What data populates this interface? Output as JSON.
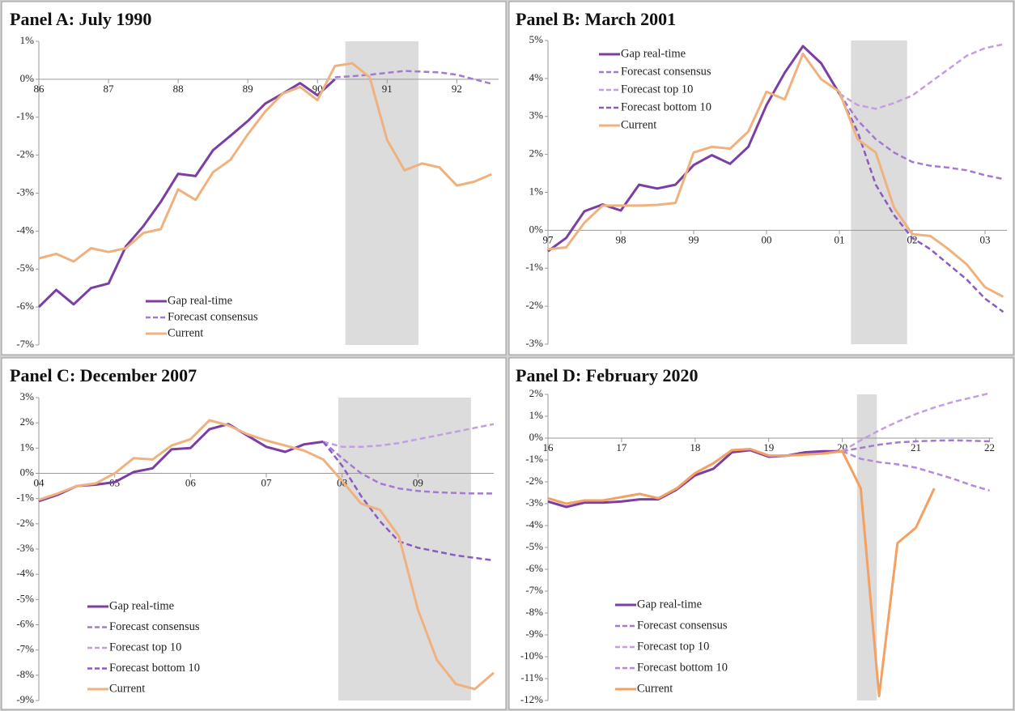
{
  "chart_data": [
    {
      "type": "line",
      "title": "Panel A: July 1990",
      "x": [
        1986,
        1986.25,
        1986.5,
        1986.75,
        1987,
        1987.25,
        1987.5,
        1987.75,
        1988,
        1988.25,
        1988.5,
        1988.75,
        1989,
        1989.25,
        1989.5,
        1989.75,
        1990,
        1990.25,
        1990.5,
        1990.75,
        1991,
        1991.25,
        1991.5,
        1991.75,
        1992,
        1992.25,
        1992.5
      ],
      "xlim": [
        1986,
        1992.6
      ],
      "xticks": [
        {
          "value": 1986,
          "label": "86"
        },
        {
          "value": 1987,
          "label": "87"
        },
        {
          "value": 1988,
          "label": "88"
        },
        {
          "value": 1989,
          "label": "89"
        },
        {
          "value": 1990,
          "label": "90"
        },
        {
          "value": 1991,
          "label": "91"
        },
        {
          "value": 1992,
          "label": "92"
        }
      ],
      "ylim": [
        -7,
        1
      ],
      "yticks": [
        {
          "value": 1,
          "label": "1%"
        },
        {
          "value": 0,
          "label": "0%"
        },
        {
          "value": -1,
          "label": "-1%"
        },
        {
          "value": -2,
          "label": "-2%"
        },
        {
          "value": -3,
          "label": "-3%"
        },
        {
          "value": -4,
          "label": "-4%"
        },
        {
          "value": -5,
          "label": "-5%"
        },
        {
          "value": -6,
          "label": "-6%"
        },
        {
          "value": -7,
          "label": "-7%"
        }
      ],
      "shade": [
        1990.4,
        1991.45
      ],
      "legend": "lower left",
      "series": [
        {
          "name": "Gap real-time",
          "color": "#7b3fa3",
          "style": "solid",
          "values": [
            -6.0,
            -5.55,
            -5.93,
            -5.5,
            -5.38,
            -4.4,
            -3.87,
            -3.23,
            -2.49,
            -2.55,
            -1.87,
            -1.49,
            -1.1,
            -0.64,
            -0.38,
            -0.1,
            -0.42,
            0.0,
            null,
            null,
            null,
            null,
            null,
            null,
            null,
            null,
            null
          ]
        },
        {
          "name": "Forecast consensus",
          "color": "#a47ad0",
          "style": "dashed",
          "values": [
            null,
            null,
            null,
            null,
            null,
            null,
            null,
            null,
            null,
            null,
            null,
            null,
            null,
            null,
            null,
            null,
            null,
            0.05,
            0.08,
            0.12,
            0.17,
            0.22,
            0.2,
            0.18,
            0.12,
            0.0,
            -0.12
          ]
        },
        {
          "name": "Current",
          "color": "#efb27e",
          "style": "solid",
          "values": [
            -4.72,
            -4.6,
            -4.8,
            -4.45,
            -4.55,
            -4.45,
            -4.05,
            -3.95,
            -2.9,
            -3.18,
            -2.45,
            -2.12,
            -1.45,
            -0.85,
            -0.38,
            -0.2,
            -0.55,
            0.35,
            0.42,
            0.05,
            -1.6,
            -2.4,
            -2.22,
            -2.32,
            -2.8,
            -2.7,
            -2.5
          ]
        }
      ]
    },
    {
      "type": "line",
      "title": "Panel B: March 2001",
      "x": [
        1997,
        1997.25,
        1997.5,
        1997.75,
        1998,
        1998.25,
        1998.5,
        1998.75,
        1999,
        1999.25,
        1999.5,
        1999.75,
        2000,
        2000.25,
        2000.5,
        2000.75,
        2001,
        2001.25,
        2001.5,
        2001.75,
        2002,
        2002.25,
        2002.5,
        2002.75,
        2003,
        2003.25
      ],
      "xlim": [
        1997,
        2003.3
      ],
      "xticks": [
        {
          "value": 1997,
          "label": "97"
        },
        {
          "value": 1998,
          "label": "98"
        },
        {
          "value": 1999,
          "label": "99"
        },
        {
          "value": 2000,
          "label": "00"
        },
        {
          "value": 2001,
          "label": "01"
        },
        {
          "value": 2002,
          "label": "02"
        },
        {
          "value": 2003,
          "label": "03"
        }
      ],
      "ylim": [
        -3,
        5
      ],
      "yticks": [
        {
          "value": 5,
          "label": "5%"
        },
        {
          "value": 4,
          "label": "4%"
        },
        {
          "value": 3,
          "label": "3%"
        },
        {
          "value": 2,
          "label": "2%"
        },
        {
          "value": 1,
          "label": "1%"
        },
        {
          "value": 0,
          "label": "0%"
        },
        {
          "value": -1,
          "label": "-1%"
        },
        {
          "value": -2,
          "label": "-2%"
        },
        {
          "value": -3,
          "label": "-3%"
        }
      ],
      "shade": [
        2001.16,
        2001.93
      ],
      "legend": "upper left",
      "series": [
        {
          "name": "Gap real-time",
          "color": "#7b3fa3",
          "style": "solid",
          "values": [
            -0.55,
            -0.2,
            0.5,
            0.68,
            0.52,
            1.2,
            1.1,
            1.2,
            1.72,
            1.98,
            1.75,
            2.2,
            3.3,
            4.15,
            4.85,
            4.4,
            3.6,
            null,
            null,
            null,
            null,
            null,
            null,
            null,
            null,
            null
          ]
        },
        {
          "name": "Forecast consensus",
          "color": "#a47ad0",
          "style": "dashed",
          "values": [
            null,
            null,
            null,
            null,
            null,
            null,
            null,
            null,
            null,
            null,
            null,
            null,
            null,
            null,
            null,
            null,
            3.6,
            2.9,
            2.4,
            2.05,
            1.8,
            1.7,
            1.65,
            1.58,
            1.45,
            1.35
          ]
        },
        {
          "name": "Forecast top 10",
          "color": "#c39ee0",
          "style": "dashed",
          "values": [
            null,
            null,
            null,
            null,
            null,
            null,
            null,
            null,
            null,
            null,
            null,
            null,
            null,
            null,
            null,
            null,
            3.6,
            3.3,
            3.2,
            3.35,
            3.55,
            3.9,
            4.25,
            4.6,
            4.8,
            4.9
          ]
        },
        {
          "name": "Forecast bottom 10",
          "color": "#8a5bbf",
          "style": "dashed",
          "values": [
            null,
            null,
            null,
            null,
            null,
            null,
            null,
            null,
            null,
            null,
            null,
            null,
            null,
            null,
            null,
            null,
            3.6,
            2.6,
            1.2,
            0.4,
            -0.2,
            -0.5,
            -0.9,
            -1.3,
            -1.8,
            -2.15
          ]
        },
        {
          "name": "Current",
          "color": "#efb27e",
          "style": "solid",
          "values": [
            -0.5,
            -0.45,
            0.2,
            0.65,
            0.65,
            0.65,
            0.67,
            0.72,
            2.05,
            2.2,
            2.15,
            2.6,
            3.65,
            3.45,
            4.65,
            3.98,
            3.65,
            2.4,
            2.05,
            0.6,
            -0.1,
            -0.15,
            -0.5,
            -0.9,
            -1.5,
            -1.75
          ]
        }
      ]
    },
    {
      "type": "line",
      "title": "Panel C: December 2007",
      "x": [
        2004,
        2004.25,
        2004.5,
        2004.75,
        2005,
        2005.25,
        2005.5,
        2005.75,
        2006,
        2006.25,
        2006.5,
        2006.75,
        2007,
        2007.25,
        2007.5,
        2007.75,
        2008,
        2008.25,
        2008.5,
        2008.75,
        2009,
        2009.25,
        2009.5,
        2009.75,
        2010
      ],
      "xlim": [
        2004,
        2010
      ],
      "xticks": [
        {
          "value": 2004,
          "label": "04"
        },
        {
          "value": 2005,
          "label": "05"
        },
        {
          "value": 2006,
          "label": "06"
        },
        {
          "value": 2007,
          "label": "07"
        },
        {
          "value": 2008,
          "label": "08"
        },
        {
          "value": 2009,
          "label": "09"
        }
      ],
      "ylim": [
        -9,
        3
      ],
      "yticks": [
        {
          "value": 3,
          "label": "3%"
        },
        {
          "value": 2,
          "label": "2%"
        },
        {
          "value": 1,
          "label": "1%"
        },
        {
          "value": 0,
          "label": "0%"
        },
        {
          "value": -1,
          "label": "-1%"
        },
        {
          "value": -2,
          "label": "-2%"
        },
        {
          "value": -3,
          "label": "-3%"
        },
        {
          "value": -4,
          "label": "-4%"
        },
        {
          "value": -5,
          "label": "-5%"
        },
        {
          "value": -6,
          "label": "-6%"
        },
        {
          "value": -7,
          "label": "-7%"
        },
        {
          "value": -8,
          "label": "-8%"
        },
        {
          "value": -9,
          "label": "-9%"
        }
      ],
      "shade": [
        2007.95,
        2009.7
      ],
      "legend": "lower left",
      "series": [
        {
          "name": "Gap real-time",
          "color": "#7b3fa3",
          "style": "solid",
          "values": [
            -1.1,
            -0.85,
            -0.5,
            -0.45,
            -0.35,
            0.05,
            0.2,
            0.95,
            1.0,
            1.75,
            1.95,
            1.5,
            1.05,
            0.85,
            1.15,
            1.25,
            null,
            null,
            null,
            null,
            null,
            null,
            null,
            null,
            null
          ]
        },
        {
          "name": "Forecast consensus",
          "color": "#a47ad0",
          "style": "dashed",
          "values": [
            null,
            null,
            null,
            null,
            null,
            null,
            null,
            null,
            null,
            null,
            null,
            null,
            null,
            null,
            null,
            1.25,
            0.6,
            0.0,
            -0.4,
            -0.6,
            -0.7,
            -0.75,
            -0.78,
            -0.8,
            -0.8
          ]
        },
        {
          "name": "Forecast top 10",
          "color": "#c39ee0",
          "style": "dashed",
          "values": [
            null,
            null,
            null,
            null,
            null,
            null,
            null,
            null,
            null,
            null,
            null,
            null,
            null,
            null,
            null,
            1.25,
            1.05,
            1.05,
            1.1,
            1.2,
            1.35,
            1.5,
            1.65,
            1.8,
            1.95
          ]
        },
        {
          "name": "Forecast bottom 10",
          "color": "#8a5bbf",
          "style": "dashed",
          "values": [
            null,
            null,
            null,
            null,
            null,
            null,
            null,
            null,
            null,
            null,
            null,
            null,
            null,
            null,
            null,
            1.25,
            0.3,
            -0.9,
            -1.9,
            -2.7,
            -2.95,
            -3.1,
            -3.25,
            -3.35,
            -3.45
          ]
        },
        {
          "name": "Current",
          "color": "#efb27e",
          "style": "solid",
          "values": [
            -1.05,
            -0.8,
            -0.5,
            -0.4,
            0.0,
            0.6,
            0.55,
            1.1,
            1.35,
            2.1,
            1.9,
            1.55,
            1.3,
            1.1,
            0.9,
            0.55,
            -0.3,
            -1.2,
            -1.45,
            -2.5,
            -5.4,
            -7.4,
            -8.35,
            -8.55,
            -7.9
          ]
        }
      ]
    },
    {
      "type": "line",
      "title": "Panel D: February 2020",
      "x": [
        2016,
        2016.25,
        2016.5,
        2016.75,
        2017,
        2017.25,
        2017.5,
        2017.75,
        2018,
        2018.25,
        2018.5,
        2018.75,
        2019,
        2019.25,
        2019.5,
        2019.75,
        2020,
        2020.25,
        2020.5,
        2020.75,
        2021,
        2021.25,
        2021.5,
        2021.75,
        2022
      ],
      "xlim": [
        2016,
        2022.05
      ],
      "xticks": [
        {
          "value": 2016,
          "label": "16"
        },
        {
          "value": 2017,
          "label": "17"
        },
        {
          "value": 2018,
          "label": "18"
        },
        {
          "value": 2019,
          "label": "19"
        },
        {
          "value": 2020,
          "label": "20"
        },
        {
          "value": 2021,
          "label": "21"
        },
        {
          "value": 2022,
          "label": "22"
        }
      ],
      "ylim": [
        -12,
        2
      ],
      "yticks": [
        {
          "value": 2,
          "label": "2%"
        },
        {
          "value": 1,
          "label": "1%"
        },
        {
          "value": 0,
          "label": "0%"
        },
        {
          "value": -1,
          "label": "-1%"
        },
        {
          "value": -2,
          "label": "-2%"
        },
        {
          "value": -3,
          "label": "-3%"
        },
        {
          "value": -4,
          "label": "-4%"
        },
        {
          "value": -5,
          "label": "-5%"
        },
        {
          "value": -6,
          "label": "-6%"
        },
        {
          "value": -7,
          "label": "-7%"
        },
        {
          "value": -8,
          "label": "-8%"
        },
        {
          "value": -9,
          "label": "-9%"
        },
        {
          "value": -10,
          "label": "-10%"
        },
        {
          "value": -11,
          "label": "-11%"
        },
        {
          "value": -12,
          "label": "-12%"
        }
      ],
      "shade": [
        2020.2,
        2020.47
      ],
      "legend": "lower left",
      "series": [
        {
          "name": "Gap real-time",
          "color": "#7b3fa3",
          "style": "solid",
          "values": [
            -2.9,
            -3.15,
            -2.95,
            -2.95,
            -2.9,
            -2.8,
            -2.8,
            -2.35,
            -1.7,
            -1.4,
            -0.65,
            -0.55,
            -0.85,
            -0.8,
            -0.65,
            -0.6,
            -0.6,
            null,
            null,
            null,
            null,
            null,
            null,
            null,
            null
          ]
        },
        {
          "name": "Forecast consensus",
          "color": "#a47ad0",
          "style": "dashed",
          "values": [
            null,
            null,
            null,
            null,
            null,
            null,
            null,
            null,
            null,
            null,
            null,
            null,
            null,
            null,
            null,
            null,
            -0.6,
            -0.45,
            -0.3,
            -0.2,
            -0.15,
            -0.12,
            -0.1,
            -0.12,
            -0.15
          ]
        },
        {
          "name": "Forecast top 10",
          "color": "#c39ee0",
          "style": "dashed",
          "values": [
            null,
            null,
            null,
            null,
            null,
            null,
            null,
            null,
            null,
            null,
            null,
            null,
            null,
            null,
            null,
            null,
            -0.6,
            -0.1,
            0.35,
            0.75,
            1.1,
            1.4,
            1.65,
            1.85,
            2.05
          ]
        },
        {
          "name": "Forecast bottom 10",
          "color": "#b48ad8",
          "style": "dashed",
          "values": [
            null,
            null,
            null,
            null,
            null,
            null,
            null,
            null,
            null,
            null,
            null,
            null,
            null,
            null,
            null,
            null,
            -0.6,
            -0.95,
            -1.1,
            -1.2,
            -1.35,
            -1.6,
            -1.85,
            -2.15,
            -2.4
          ]
        },
        {
          "name": "Current",
          "color": "#f3a062",
          "style": "solid",
          "values": [
            -2.75,
            -3.0,
            -2.85,
            -2.85,
            -2.7,
            -2.55,
            -2.75,
            -2.3,
            -1.6,
            -1.15,
            -0.55,
            -0.5,
            -0.8,
            -0.8,
            -0.75,
            -0.7,
            -0.6,
            -2.3,
            -11.8,
            -4.8,
            -4.1,
            -2.3,
            null,
            null,
            null
          ]
        }
      ]
    }
  ]
}
